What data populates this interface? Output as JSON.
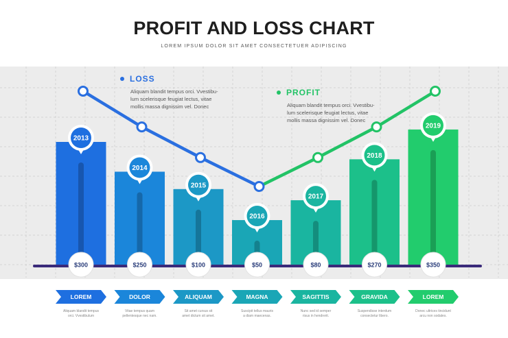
{
  "header": {
    "title": "PROFIT AND LOSS CHART",
    "subtitle": "LOREM IPSUM DOLOR SIT AMET CONSECTETUER ADIPISCING"
  },
  "legend": {
    "loss": {
      "label": "LOSS",
      "color": "#2a6fe0",
      "description_lines": [
        "Aliquam blandit tempus orci. Vvestibu-",
        "lum scelerisque feugiat lectus, vitae",
        "mollis massa dignissim vel. Donec"
      ]
    },
    "profit": {
      "label": "PROFIT",
      "color": "#22c366",
      "description_lines": [
        "Aliquam blandit tempus orci. Vvestibu-",
        "lum scelerisque feugiat lectus, vitae",
        "mollis massa dignissim vel. Donec"
      ]
    }
  },
  "chart_data": {
    "type": "bar",
    "categories": [
      "2013",
      "2014",
      "2015",
      "2016",
      "2017",
      "2018",
      "2019"
    ],
    "values": [
      300,
      250,
      100,
      50,
      80,
      270,
      350
    ],
    "value_labels": [
      "$300",
      "$250",
      "$100",
      "$50",
      "$80",
      "$270",
      "$350"
    ],
    "bar_heights_relative": [
      1.0,
      0.76,
      0.62,
      0.37,
      0.53,
      0.86,
      1.1
    ],
    "bar_colors": [
      "#1e6fe0",
      "#1b86da",
      "#1c98c6",
      "#1aa6b6",
      "#1ab5a0",
      "#1cc08a",
      "#22cc6d"
    ],
    "line_series": {
      "name": "",
      "relative_level": [
        1.0,
        0.79,
        0.61,
        0.44,
        0.61,
        0.79,
        1.0
      ],
      "segment_colors": {
        "decline": "#2a6fe0",
        "rise": "#22c366"
      }
    },
    "grid": true,
    "xlabel": "",
    "ylabel": ""
  },
  "footer": {
    "items": [
      {
        "label": "LOREM",
        "color": "#1e6fe0",
        "description_lines": [
          "Aliquam blandit tempus",
          "orci. Vvestibulum"
        ]
      },
      {
        "label": "DOLOR",
        "color": "#1b86da",
        "description_lines": [
          "Vitae tempus quam",
          "pellentesque nec nam."
        ]
      },
      {
        "label": "ALIQUAM",
        "color": "#1c98c6",
        "description_lines": [
          "Sit amet cursus sit",
          "amet dictum sit amet."
        ]
      },
      {
        "label": "MAGNA",
        "color": "#1aa6b6",
        "description_lines": [
          "Suscipit tellus mauris",
          "a diam maecenas."
        ]
      },
      {
        "label": "SAGITTIS",
        "color": "#1ab5a0",
        "description_lines": [
          "Nunc sed id semper",
          "risus in hendrerit."
        ]
      },
      {
        "label": "GRAVIDA",
        "color": "#1cc08a",
        "description_lines": [
          "Suspendisse interdum",
          "consectetur libero."
        ]
      },
      {
        "label": "LOREM",
        "color": "#22cc6d",
        "description_lines": [
          "Donec ultrices tincidunt",
          "arcu non sodales."
        ]
      }
    ]
  }
}
